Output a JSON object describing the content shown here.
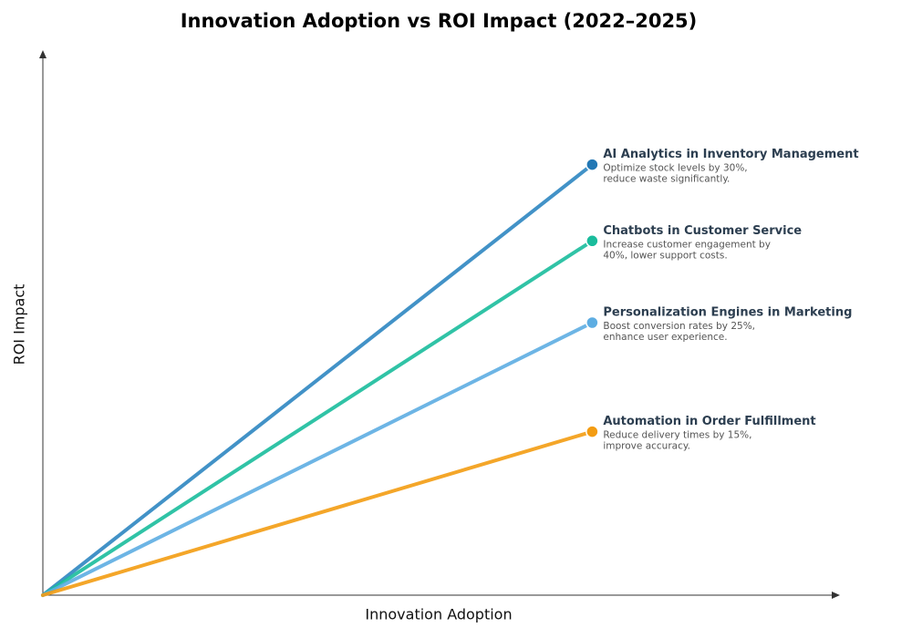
{
  "chart_data": {
    "type": "line",
    "title": "Innovation Adoption vs ROI Impact (2022–2025)",
    "x_label": "Innovation Adoption",
    "y_label": "ROI Impact",
    "x": [
      0,
      69
    ],
    "xlim": [
      0,
      100
    ],
    "ylim": [
      0,
      100
    ],
    "series": [
      {
        "name": "AI Analytics in Inventory Management",
        "color": "#2e86c1",
        "marker_color": "#2378b5",
        "values": [
          0,
          79
        ],
        "description": [
          "Optimize stock levels by 30%,",
          "reduce waste significantly."
        ]
      },
      {
        "name": "Chatbots in Customer Service",
        "color": "#1abc9c",
        "marker_color": "#1abc9c",
        "values": [
          0,
          65
        ],
        "description": [
          "Increase customer engagement by",
          "40%, lower support costs."
        ]
      },
      {
        "name": "Personalization Engines in Marketing",
        "color": "#5dade2",
        "marker_color": "#5dade2",
        "values": [
          0,
          50
        ],
        "description": [
          "Boost conversion rates by 25%,",
          "enhance user experience."
        ]
      },
      {
        "name": "Automation in Order Fulfillment",
        "color": "#f39c12",
        "marker_color": "#f39c12",
        "values": [
          0,
          30
        ],
        "description": [
          "Reduce delivery times by 15%,",
          "improve accuracy."
        ]
      }
    ]
  }
}
